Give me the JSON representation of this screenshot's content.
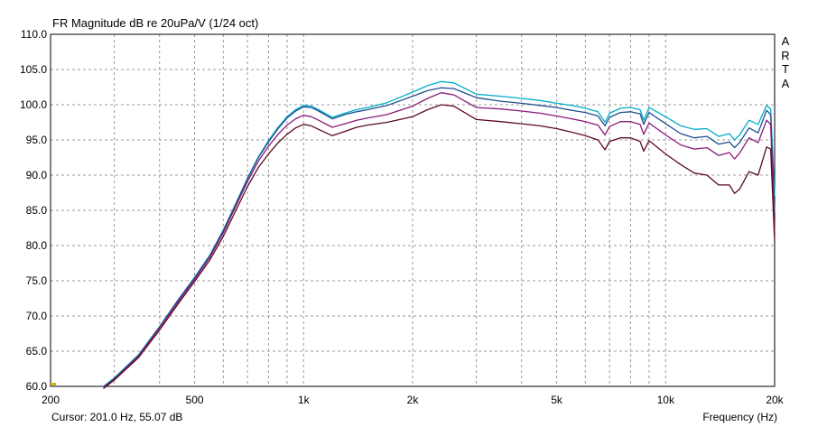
{
  "chart_data": {
    "type": "line",
    "title": "FR Magnitude dB re 20uPa/V (1/24 oct)",
    "xlabel": "Frequency (Hz)",
    "ylabel": "",
    "x_scale": "log",
    "xlim": [
      200,
      20000
    ],
    "ylim": [
      60,
      110
    ],
    "grid": true,
    "y_ticks": [
      "110.0",
      "105.0",
      "100.0",
      "95.0",
      "90.0",
      "85.0",
      "80.0",
      "75.0",
      "70.0",
      "65.0",
      "60.0"
    ],
    "x_ticks": [
      {
        "value": 200,
        "label": "200"
      },
      {
        "value": 500,
        "label": "500"
      },
      {
        "value": 1000,
        "label": "1k"
      },
      {
        "value": 2000,
        "label": "2k"
      },
      {
        "value": 5000,
        "label": "5k"
      },
      {
        "value": 10000,
        "label": "10k"
      },
      {
        "value": 20000,
        "label": "20k"
      }
    ],
    "grid_x": [
      300,
      400,
      500,
      600,
      700,
      800,
      900,
      1000,
      2000,
      3000,
      4000,
      5000,
      6000,
      7000,
      8000,
      9000,
      10000
    ],
    "x": [
      280,
      300,
      350,
      400,
      450,
      500,
      550,
      600,
      650,
      700,
      750,
      800,
      850,
      900,
      950,
      1000,
      1050,
      1100,
      1200,
      1300,
      1400,
      1500,
      1700,
      2000,
      2200,
      2400,
      2600,
      3000,
      3500,
      4000,
      4500,
      5000,
      5500,
      6000,
      6500,
      6800,
      7000,
      7500,
      8000,
      8500,
      8700,
      9000,
      10000,
      11000,
      12000,
      13000,
      14000,
      15000,
      15500,
      16000,
      17000,
      18000,
      19000,
      19500,
      20000
    ],
    "series": [
      {
        "color": "#00aec8",
        "values": [
          60.0,
          61.2,
          64.5,
          68.5,
          72.3,
          75.5,
          78.6,
          82.2,
          86.0,
          89.6,
          92.6,
          94.9,
          96.8,
          98.3,
          99.3,
          99.9,
          99.8,
          99.3,
          98.2,
          98.8,
          99.3,
          99.6,
          100.3,
          101.8,
          102.7,
          103.3,
          103.1,
          101.5,
          101.2,
          100.9,
          100.6,
          100.2,
          99.9,
          99.5,
          99.0,
          97.5,
          98.8,
          99.5,
          99.6,
          99.3,
          97.8,
          99.6,
          98.3,
          97.0,
          96.5,
          96.6,
          95.5,
          95.9,
          95.0,
          95.7,
          97.8,
          97.2,
          99.9,
          99.4,
          87.0
        ]
      },
      {
        "color": "#1f4e8f",
        "values": [
          59.9,
          61.1,
          64.4,
          68.4,
          72.2,
          75.4,
          78.5,
          82.1,
          85.9,
          89.5,
          92.5,
          94.7,
          96.6,
          98.1,
          99.1,
          99.7,
          99.6,
          99.1,
          98.0,
          98.6,
          99.0,
          99.3,
          99.9,
          101.2,
          102.0,
          102.4,
          102.3,
          101.0,
          100.5,
          100.2,
          99.9,
          99.6,
          99.2,
          98.9,
          98.4,
          97.0,
          98.2,
          98.9,
          99.0,
          98.7,
          97.2,
          98.9,
          97.3,
          95.9,
          95.3,
          95.5,
          94.4,
          94.7,
          93.9,
          94.6,
          96.7,
          96.0,
          99.2,
          98.6,
          84.5
        ]
      },
      {
        "color": "#8a1a78",
        "values": [
          59.8,
          61.0,
          64.3,
          68.3,
          72.0,
          75.2,
          78.3,
          81.8,
          85.6,
          89.1,
          92.0,
          94.1,
          95.8,
          97.1,
          98.0,
          98.5,
          98.3,
          97.8,
          96.8,
          97.3,
          97.8,
          98.1,
          98.6,
          99.8,
          100.9,
          101.7,
          101.4,
          99.6,
          99.4,
          99.1,
          98.8,
          98.4,
          98.0,
          97.6,
          97.1,
          95.7,
          96.9,
          97.6,
          97.6,
          97.2,
          95.8,
          97.4,
          95.7,
          94.3,
          93.7,
          93.9,
          92.8,
          93.2,
          92.3,
          93.1,
          95.3,
          94.6,
          97.8,
          97.2,
          81.5
        ]
      },
      {
        "color": "#5a0a1e",
        "values": [
          59.7,
          60.9,
          64.1,
          68.0,
          71.7,
          74.9,
          77.9,
          81.3,
          85.0,
          88.4,
          91.1,
          93.0,
          94.6,
          95.8,
          96.7,
          97.2,
          97.0,
          96.5,
          95.6,
          96.2,
          96.8,
          97.1,
          97.5,
          98.3,
          99.3,
          100.0,
          99.8,
          97.9,
          97.6,
          97.3,
          97.0,
          96.6,
          96.1,
          95.6,
          95.0,
          93.6,
          94.8,
          95.3,
          95.3,
          94.8,
          93.4,
          94.9,
          93.0,
          91.5,
          90.3,
          90.0,
          88.6,
          88.6,
          87.4,
          88.0,
          90.5,
          90.0,
          94.0,
          93.7,
          80.5
        ]
      }
    ]
  },
  "footer": {
    "cursor_text": "Cursor: 201.0 Hz, 55.07 dB"
  },
  "brand": [
    "A",
    "R",
    "T",
    "A"
  ]
}
